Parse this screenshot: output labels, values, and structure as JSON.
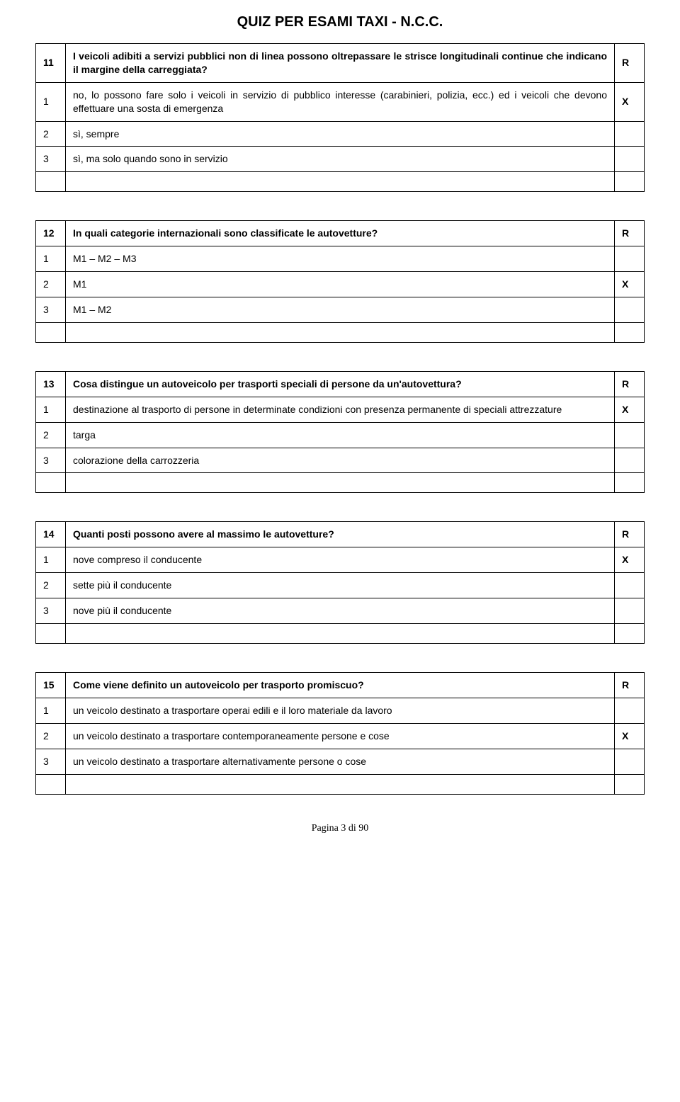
{
  "title": "QUIZ PER ESAMI TAXI - N.C.C.",
  "footer": "Pagina 3 di 90",
  "blocks": [
    {
      "q_num": "11",
      "q_text": "I veicoli adibiti a servizi pubblici non di linea possono oltrepassare le strisce longitudinali continue che indicano il margine della carreggiata?",
      "q_mark": "R",
      "answers": [
        {
          "num": "1",
          "text": "no, lo possono fare solo i veicoli in servizio di pubblico interesse (carabinieri, polizia, ecc.) ed i veicoli che devono effettuare una sosta di emergenza",
          "mark": "X"
        },
        {
          "num": "2",
          "text": "sì, sempre",
          "mark": ""
        },
        {
          "num": "3",
          "text": "sì, ma solo quando sono in servizio",
          "mark": ""
        }
      ]
    },
    {
      "q_num": "12",
      "q_text": "In quali categorie internazionali sono classificate le autovetture?",
      "q_mark": "R",
      "answers": [
        {
          "num": "1",
          "text": "M1 – M2 – M3",
          "mark": ""
        },
        {
          "num": "2",
          "text": "M1",
          "mark": "X"
        },
        {
          "num": "3",
          "text": "M1 – M2",
          "mark": ""
        }
      ]
    },
    {
      "q_num": "13",
      "q_text": "Cosa distingue un autoveicolo per trasporti speciali di persone da un'autovettura?",
      "q_mark": "R",
      "answers": [
        {
          "num": "1",
          "text": "destinazione al trasporto di persone in determinate condizioni con presenza permanente di speciali attrezzature",
          "mark": "X"
        },
        {
          "num": "2",
          "text": "targa",
          "mark": ""
        },
        {
          "num": "3",
          "text": "colorazione della carrozzeria",
          "mark": ""
        }
      ]
    },
    {
      "q_num": "14",
      "q_text": "Quanti posti possono avere al massimo le autovetture?",
      "q_mark": "R",
      "answers": [
        {
          "num": "1",
          "text": "nove compreso il conducente",
          "mark": "X"
        },
        {
          "num": "2",
          "text": "sette più il conducente",
          "mark": ""
        },
        {
          "num": "3",
          "text": "nove più il conducente",
          "mark": ""
        }
      ]
    },
    {
      "q_num": "15",
      "q_text": "Come viene definito un autoveicolo per trasporto promiscuo?",
      "q_mark": "R",
      "answers": [
        {
          "num": "1",
          "text": "un veicolo destinato a trasportare operai edili e il loro materiale da lavoro",
          "mark": ""
        },
        {
          "num": "2",
          "text": "un veicolo destinato a trasportare contemporaneamente persone e cose",
          "mark": "X"
        },
        {
          "num": "3",
          "text": "un veicolo destinato a trasportare alternativamente persone o cose",
          "mark": ""
        }
      ]
    }
  ]
}
